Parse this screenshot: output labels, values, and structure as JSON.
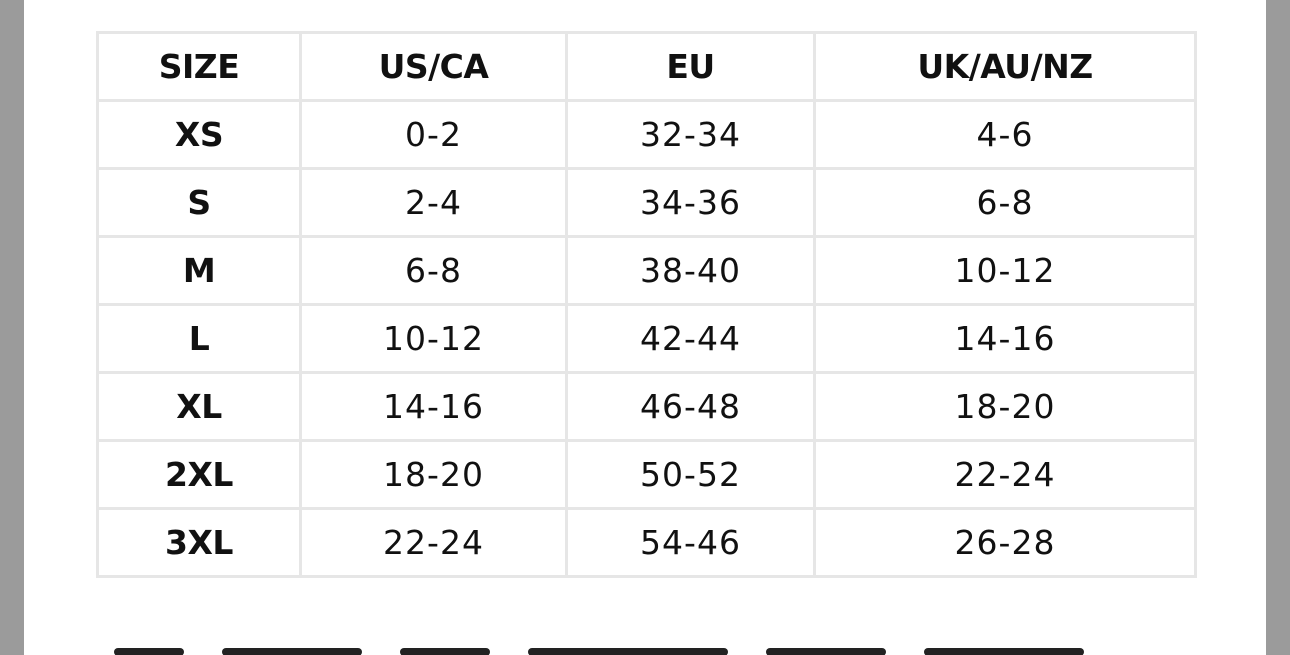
{
  "table": {
    "headers": [
      "SIZE",
      "US/CA",
      "EU",
      "UK/AU/NZ"
    ],
    "rows": [
      {
        "size": "XS",
        "us_ca": "0-2",
        "eu": "32-34",
        "uk_au_nz": "4-6"
      },
      {
        "size": "S",
        "us_ca": "2-4",
        "eu": "34-36",
        "uk_au_nz": "6-8"
      },
      {
        "size": "M",
        "us_ca": "6-8",
        "eu": "38-40",
        "uk_au_nz": "10-12"
      },
      {
        "size": "L",
        "us_ca": "10-12",
        "eu": "42-44",
        "uk_au_nz": "14-16"
      },
      {
        "size": "XL",
        "us_ca": "14-16",
        "eu": "46-48",
        "uk_au_nz": "18-20"
      },
      {
        "size": "2XL",
        "us_ca": "18-20",
        "eu": "50-52",
        "uk_au_nz": "22-24"
      },
      {
        "size": "3XL",
        "us_ca": "22-24",
        "eu": "54-46",
        "uk_au_nz": "26-28"
      }
    ]
  },
  "colors": {
    "background_frame": "#9b9b9b",
    "page": "#ffffff",
    "grid_lines": "#e6e6e6",
    "text": "#111111"
  }
}
